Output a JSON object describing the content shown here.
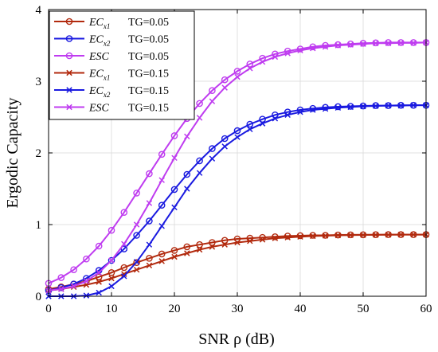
{
  "chart_data": {
    "type": "line",
    "xlabel": "SNR ρ (dB)",
    "ylabel": "Ergodic Capacity",
    "xlim": [
      0,
      60
    ],
    "ylim": [
      0,
      4
    ],
    "xticks": [
      "0",
      "10",
      "20",
      "30",
      "40",
      "50",
      "60"
    ],
    "yticks": [
      "0",
      "1",
      "2",
      "3",
      "4"
    ],
    "grid": true,
    "legend_position": "top-left",
    "x": [
      0,
      2,
      4,
      6,
      8,
      10,
      12,
      14,
      16,
      18,
      20,
      22,
      24,
      26,
      28,
      30,
      32,
      34,
      36,
      38,
      40,
      42,
      44,
      46,
      48,
      50,
      52,
      54,
      56,
      58,
      60
    ],
    "series": [
      {
        "label_main": "EC",
        "label_sub": "x1",
        "label_tg": "TG=0.05",
        "color": "#b22a0e",
        "marker": "circle",
        "values": [
          0.1,
          0.13,
          0.17,
          0.21,
          0.27,
          0.33,
          0.4,
          0.47,
          0.53,
          0.59,
          0.64,
          0.69,
          0.72,
          0.75,
          0.78,
          0.8,
          0.81,
          0.82,
          0.83,
          0.84,
          0.845,
          0.85,
          0.85,
          0.855,
          0.857,
          0.858,
          0.859,
          0.86,
          0.86,
          0.86,
          0.86
        ]
      },
      {
        "label_main": "EC",
        "label_sub": "x2",
        "label_tg": "TG=0.05",
        "color": "#1a1ae0",
        "marker": "circle",
        "values": [
          0.08,
          0.12,
          0.17,
          0.25,
          0.36,
          0.5,
          0.66,
          0.85,
          1.05,
          1.27,
          1.49,
          1.7,
          1.89,
          2.06,
          2.2,
          2.31,
          2.4,
          2.47,
          2.53,
          2.57,
          2.6,
          2.62,
          2.635,
          2.645,
          2.65,
          2.655,
          2.66,
          2.66,
          2.665,
          2.665,
          2.665
        ]
      },
      {
        "label_main": "ESC",
        "label_sub": "",
        "label_tg": "TG=0.05",
        "color": "#bf3cf0",
        "marker": "circle",
        "values": [
          0.18,
          0.26,
          0.37,
          0.52,
          0.7,
          0.92,
          1.17,
          1.44,
          1.71,
          1.98,
          2.24,
          2.48,
          2.69,
          2.87,
          3.02,
          3.14,
          3.24,
          3.32,
          3.38,
          3.42,
          3.45,
          3.48,
          3.5,
          3.51,
          3.52,
          3.53,
          3.535,
          3.54,
          3.54,
          3.54,
          3.54
        ]
      },
      {
        "label_main": "EC",
        "label_sub": "x1",
        "label_tg": "TG=0.15",
        "color": "#b22a0e",
        "marker": "x",
        "values": [
          0.08,
          0.1,
          0.13,
          0.16,
          0.2,
          0.25,
          0.31,
          0.37,
          0.43,
          0.49,
          0.55,
          0.6,
          0.65,
          0.69,
          0.72,
          0.75,
          0.77,
          0.79,
          0.81,
          0.82,
          0.83,
          0.84,
          0.845,
          0.85,
          0.853,
          0.855,
          0.857,
          0.858,
          0.86,
          0.86,
          0.86
        ]
      },
      {
        "label_main": "EC",
        "label_sub": "x2",
        "label_tg": "TG=0.15",
        "color": "#1a1ae0",
        "marker": "x",
        "values": [
          0.0,
          0.0,
          0.0,
          0.01,
          0.05,
          0.14,
          0.28,
          0.48,
          0.72,
          0.98,
          1.24,
          1.5,
          1.72,
          1.92,
          2.09,
          2.22,
          2.33,
          2.41,
          2.48,
          2.53,
          2.57,
          2.6,
          2.615,
          2.63,
          2.64,
          2.65,
          2.655,
          2.66,
          2.66,
          2.665,
          2.665
        ]
      },
      {
        "label_main": "ESC",
        "label_sub": "",
        "label_tg": "TG=0.15",
        "color": "#bf3cf0",
        "marker": "x",
        "values": [
          0.08,
          0.1,
          0.14,
          0.21,
          0.33,
          0.5,
          0.73,
          1.0,
          1.3,
          1.62,
          1.93,
          2.23,
          2.49,
          2.72,
          2.91,
          3.06,
          3.18,
          3.27,
          3.34,
          3.39,
          3.43,
          3.46,
          3.48,
          3.5,
          3.51,
          3.52,
          3.53,
          3.53,
          3.535,
          3.535,
          3.54
        ]
      }
    ]
  }
}
